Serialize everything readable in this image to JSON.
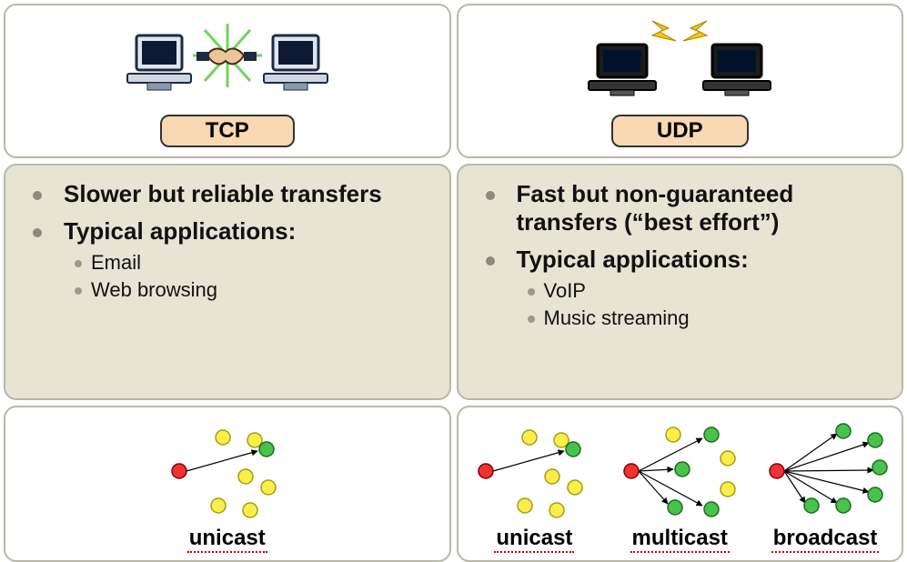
{
  "tcp": {
    "label": "TCP",
    "label_bg": "#f9d9b3",
    "features": [
      {
        "text": "Slower but reliable transfers"
      },
      {
        "text": "Typical applications:",
        "sub": [
          "Email",
          "Web browsing"
        ]
      }
    ],
    "casts": [
      {
        "label": "unicast",
        "type": "unicast"
      }
    ]
  },
  "udp": {
    "label": "UDP",
    "label_bg": "#f9d9b3",
    "features": [
      {
        "text": "Fast but non-guaranteed transfers (“best effort”)"
      },
      {
        "text": "Typical applications:",
        "sub": [
          "VoIP",
          "Music streaming"
        ]
      }
    ],
    "casts": [
      {
        "label": "unicast",
        "type": "unicast"
      },
      {
        "label": "multicast",
        "type": "multicast"
      },
      {
        "label": "broadcast",
        "type": "broadcast"
      }
    ]
  },
  "colors": {
    "panel_border": "#b8b8a8",
    "feat_bg": "#e8e4d4",
    "src": "#ee3333",
    "tgt": "#49c24b",
    "idle": "#f9ef4a",
    "underline": "#d00000"
  },
  "node_radius": 8
}
